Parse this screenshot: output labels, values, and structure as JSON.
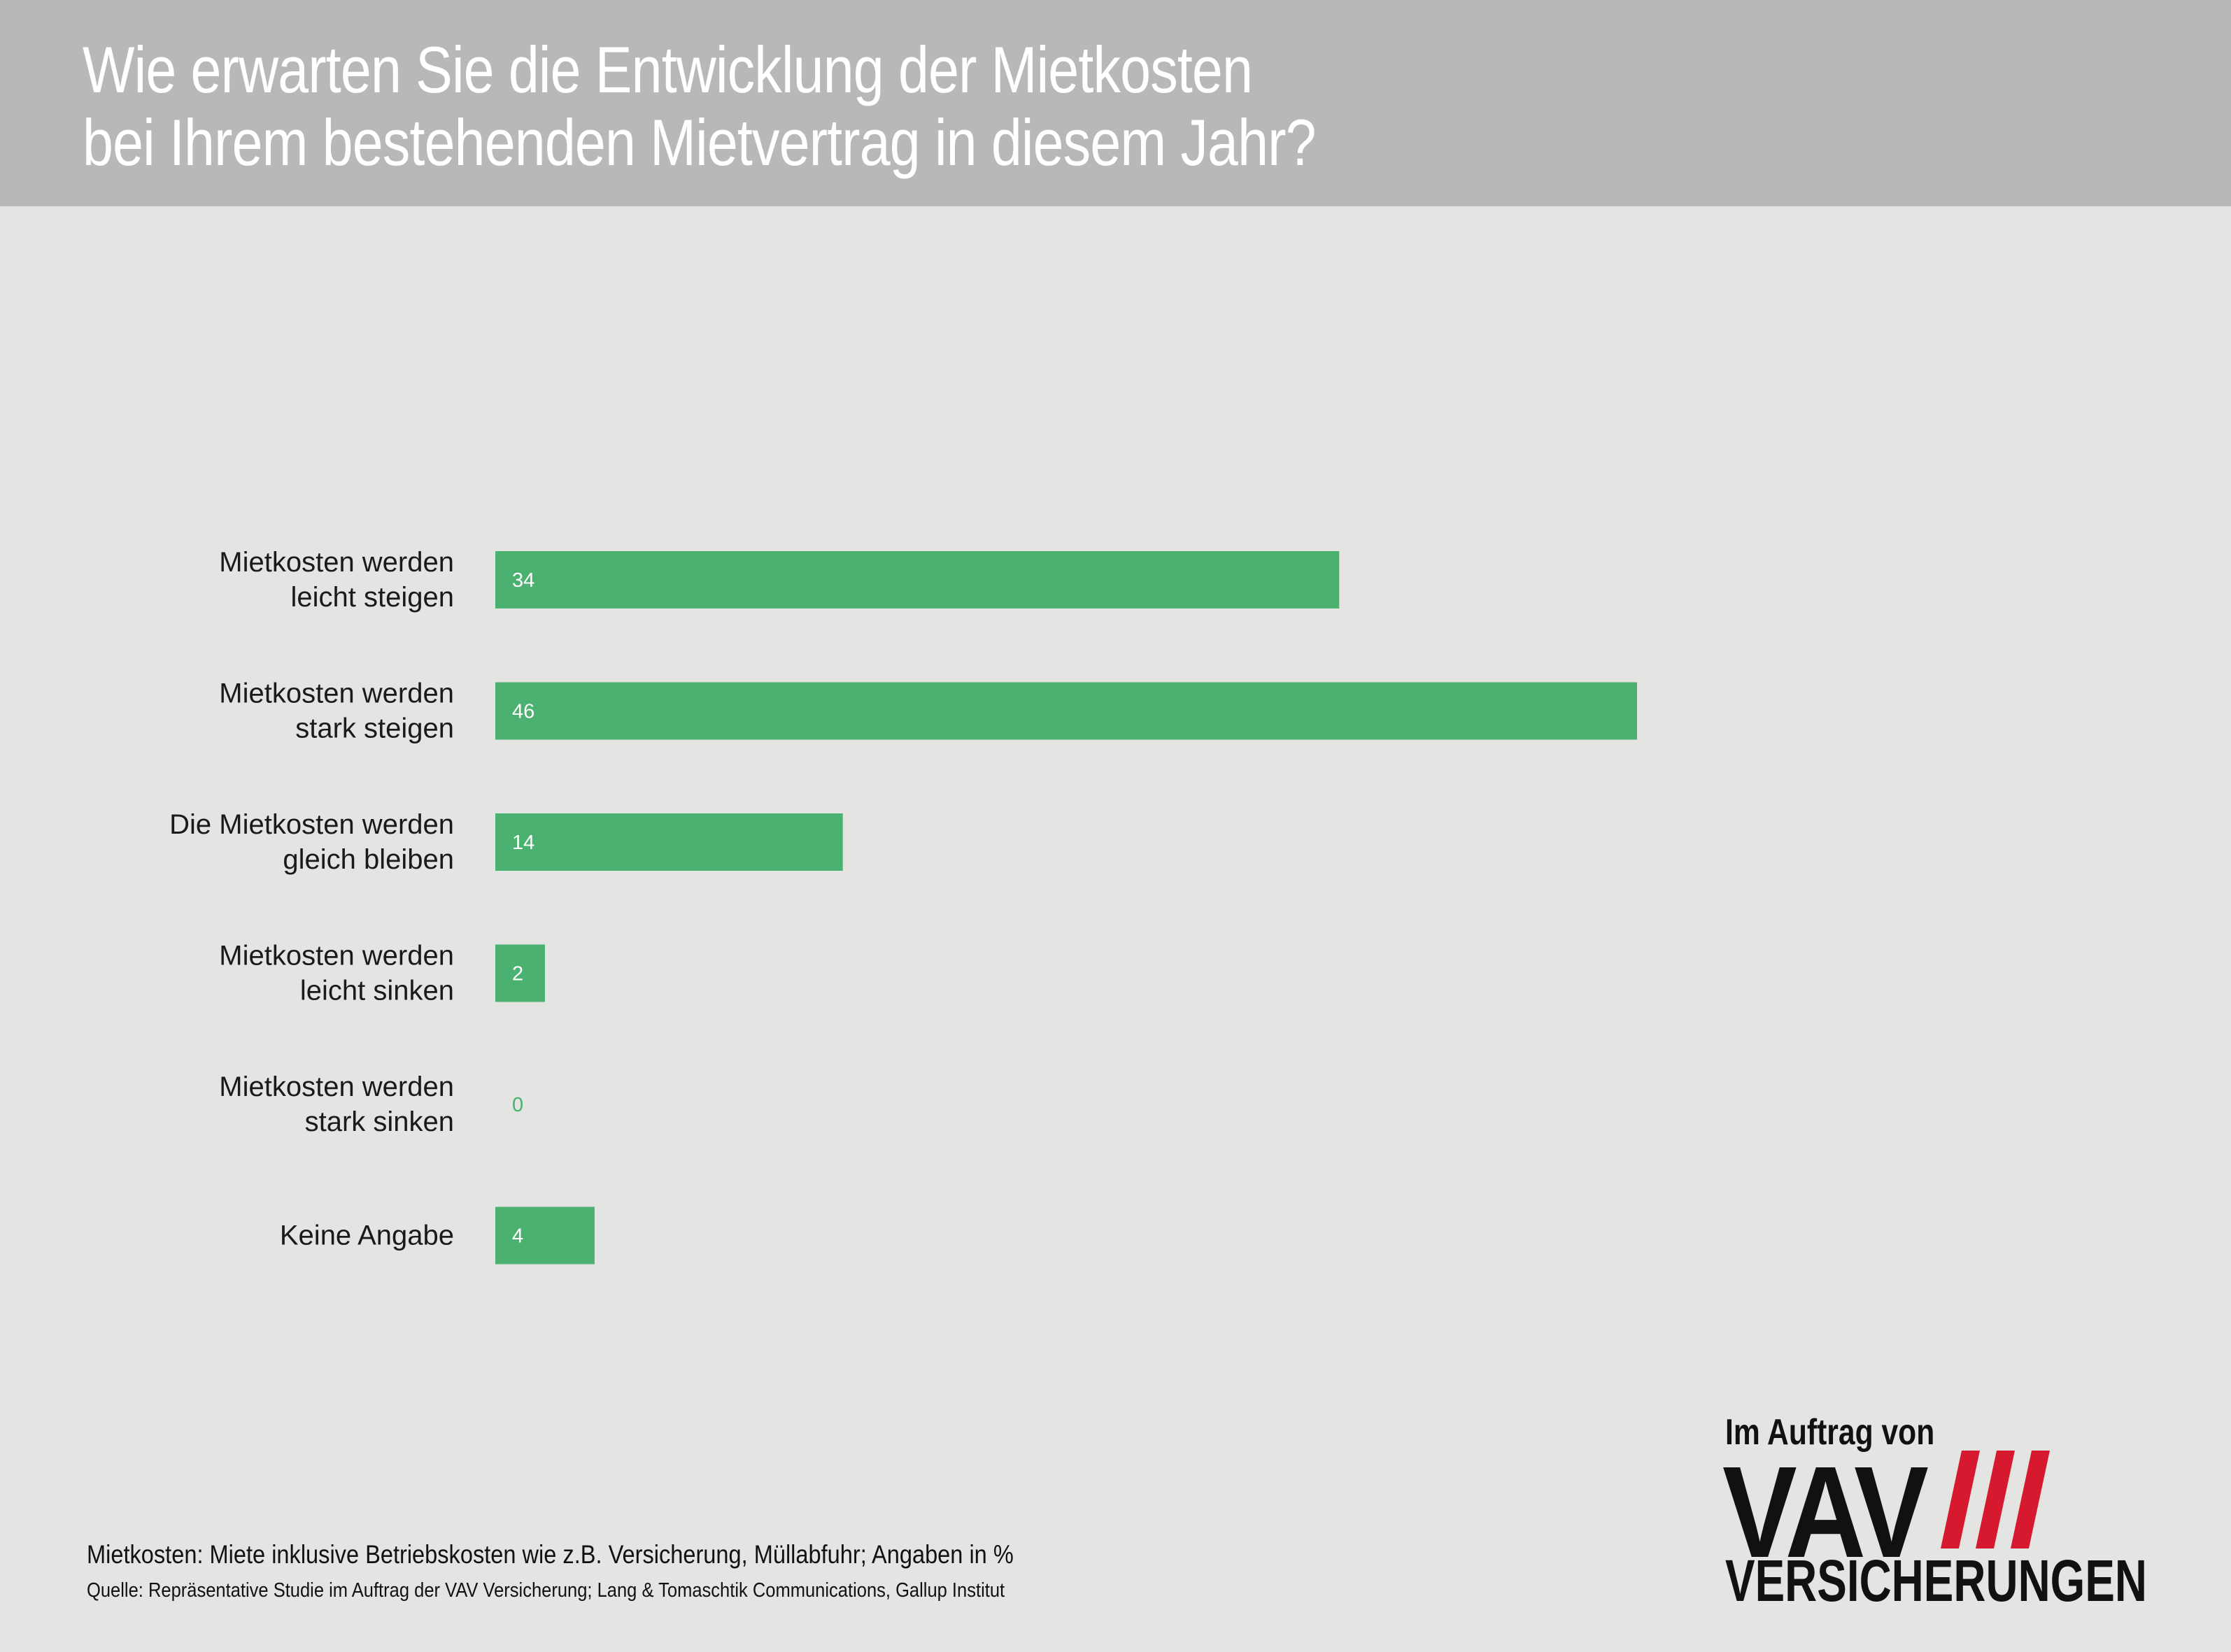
{
  "header": {
    "title_line1": "Wie erwarten Sie die Entwicklung der Mietkosten",
    "title_line2": "bei Ihrem bestehenden Mietvertrag in diesem Jahr?"
  },
  "chart_data": {
    "type": "bar",
    "orientation": "horizontal",
    "categories": [
      [
        "Mietkosten werden",
        "leicht steigen"
      ],
      [
        "Mietkosten werden",
        "stark steigen"
      ],
      [
        "Die Mietkosten werden",
        "gleich bleiben"
      ],
      [
        "Mietkosten werden",
        "leicht sinken"
      ],
      [
        "Mietkosten werden",
        "stark sinken"
      ],
      [
        "Keine Angabe"
      ]
    ],
    "values": [
      34,
      46,
      14,
      2,
      0,
      4
    ],
    "xlim": [
      0,
      50
    ],
    "grid": false,
    "legend": "none",
    "bar_color": "#4ab170",
    "label_color_on_bar": "#ffffff",
    "label_color_off_bar": "#4ab170"
  },
  "footer": {
    "note": "Mietkosten: Miete inklusive Betriebskosten wie z.B. Versicherung, Müllabfuhr; Angaben in %",
    "source": "Quelle: Repräsentative Studie im Auftrag der VAV Versicherung; Lang & Tomaschtik Communications, Gallup Institut"
  },
  "logo": {
    "caption": "Im Auftrag von",
    "brand": "VAV",
    "word": "VERSICHERUNGEN",
    "stripe_color": "#d7192f"
  }
}
